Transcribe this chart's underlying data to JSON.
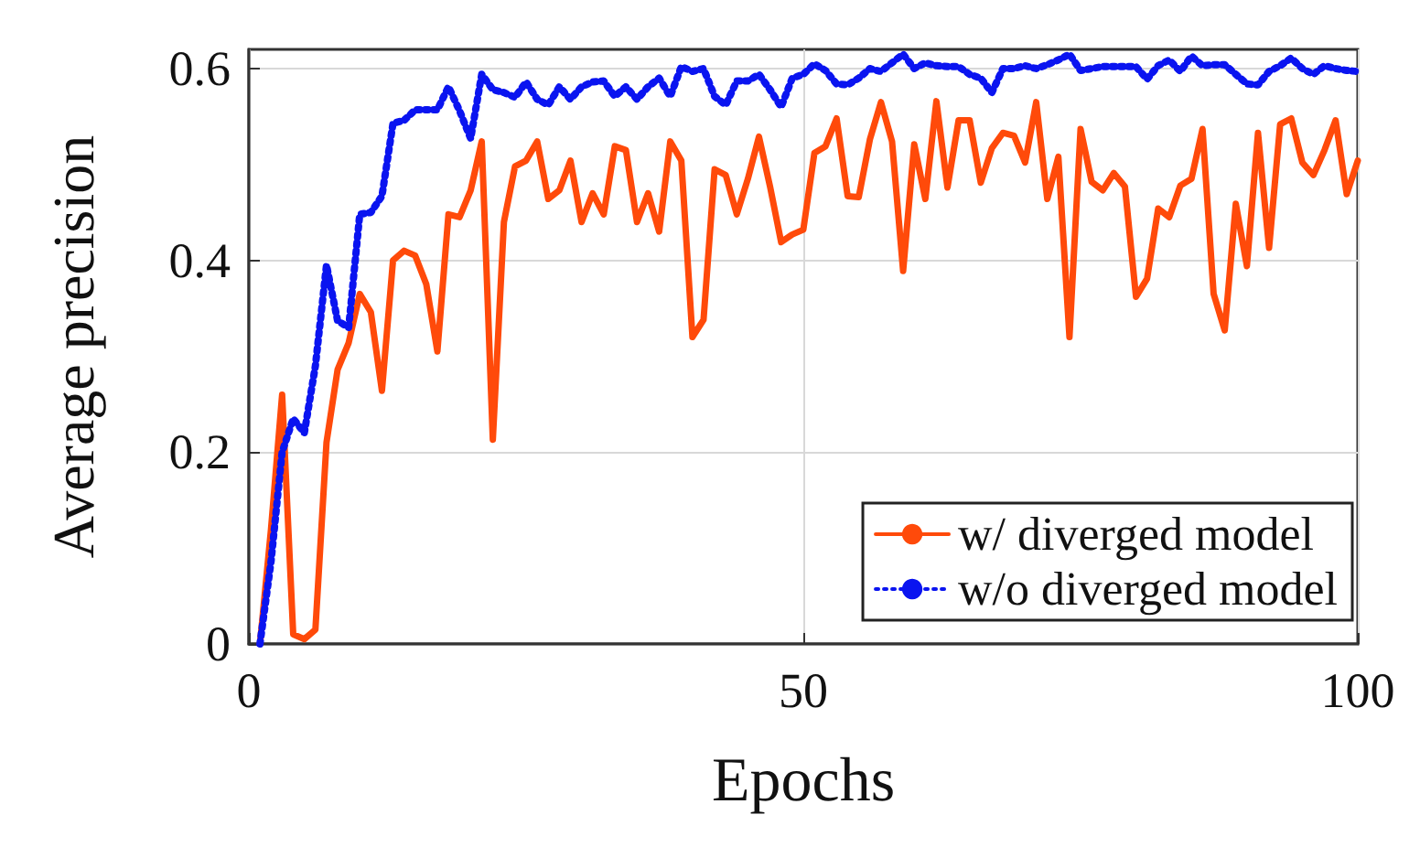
{
  "chart_data": {
    "type": "line",
    "xlabel": "Epochs",
    "ylabel": "Average precision",
    "x": [
      1,
      2,
      3,
      4,
      5,
      6,
      7,
      8,
      9,
      10,
      11,
      12,
      13,
      14,
      15,
      16,
      17,
      18,
      19,
      20,
      21,
      22,
      23,
      24,
      25,
      26,
      27,
      28,
      29,
      30,
      31,
      32,
      33,
      34,
      35,
      36,
      37,
      38,
      39,
      40,
      41,
      42,
      43,
      44,
      45,
      46,
      47,
      48,
      49,
      50,
      51,
      52,
      53,
      54,
      55,
      56,
      57,
      58,
      59,
      60,
      61,
      62,
      63,
      64,
      65,
      66,
      67,
      68,
      69,
      70,
      71,
      72,
      73,
      74,
      75,
      76,
      77,
      78,
      79,
      80,
      81,
      82,
      83,
      84,
      85,
      86,
      87,
      88,
      89,
      90,
      91,
      92,
      93,
      94,
      95,
      96,
      97,
      98,
      99,
      100
    ],
    "series": [
      {
        "name": "w/ diverged model",
        "color": "#ff4a0a",
        "line_style": "solid",
        "values": [
          0,
          0.12,
          0.26,
          0.01,
          0.005,
          0.015,
          0.21,
          0.286,
          0.314,
          0.365,
          0.346,
          0.264,
          0.4,
          0.41,
          0.405,
          0.375,
          0.305,
          0.448,
          0.445,
          0.473,
          0.524,
          0.213,
          0.44,
          0.498,
          0.504,
          0.524,
          0.464,
          0.473,
          0.504,
          0.44,
          0.47,
          0.448,
          0.519,
          0.515,
          0.44,
          0.47,
          0.43,
          0.524,
          0.504,
          0.32,
          0.338,
          0.495,
          0.489,
          0.448,
          0.485,
          0.529,
          0.477,
          0.419,
          0.427,
          0.432,
          0.512,
          0.519,
          0.548,
          0.467,
          0.466,
          0.526,
          0.565,
          0.524,
          0.389,
          0.521,
          0.464,
          0.566,
          0.476,
          0.546,
          0.546,
          0.481,
          0.517,
          0.533,
          0.53,
          0.502,
          0.565,
          0.464,
          0.508,
          0.32,
          0.537,
          0.482,
          0.473,
          0.491,
          0.477,
          0.362,
          0.381,
          0.454,
          0.445,
          0.478,
          0.485,
          0.537,
          0.365,
          0.327,
          0.459,
          0.394,
          0.533,
          0.413,
          0.542,
          0.548,
          0.502,
          0.489,
          0.515,
          0.546,
          0.469,
          0.504
        ]
      },
      {
        "name": "w/o diverged model",
        "color": "#0a14f0",
        "line_style": "dotted",
        "values": [
          0,
          0.086,
          0.2,
          0.235,
          0.22,
          0.29,
          0.395,
          0.337,
          0.33,
          0.448,
          0.45,
          0.467,
          0.543,
          0.546,
          0.557,
          0.557,
          0.557,
          0.581,
          0.556,
          0.527,
          0.594,
          0.578,
          0.575,
          0.57,
          0.586,
          0.568,
          0.562,
          0.581,
          0.568,
          0.581,
          0.586,
          0.587,
          0.571,
          0.581,
          0.568,
          0.581,
          0.59,
          0.571,
          0.602,
          0.597,
          0.6,
          0.571,
          0.562,
          0.587,
          0.587,
          0.594,
          0.578,
          0.56,
          0.59,
          0.594,
          0.605,
          0.598,
          0.584,
          0.583,
          0.59,
          0.6,
          0.597,
          0.606,
          0.615,
          0.6,
          0.606,
          0.603,
          0.602,
          0.602,
          0.594,
          0.59,
          0.575,
          0.6,
          0.6,
          0.603,
          0.6,
          0.604,
          0.609,
          0.615,
          0.598,
          0.6,
          0.602,
          0.602,
          0.602,
          0.602,
          0.589,
          0.603,
          0.609,
          0.597,
          0.613,
          0.603,
          0.604,
          0.604,
          0.594,
          0.584,
          0.583,
          0.597,
          0.603,
          0.611,
          0.6,
          0.594,
          0.603,
          0.6,
          0.598,
          0.597
        ]
      }
    ],
    "xlim": [
      0,
      100
    ],
    "xticks": [
      0,
      50,
      100
    ],
    "ylim": [
      0,
      0.62
    ],
    "yticks": [
      0,
      0.2,
      0.4,
      0.6
    ],
    "grid": true,
    "legend": "bottom right",
    "marker": "none"
  }
}
